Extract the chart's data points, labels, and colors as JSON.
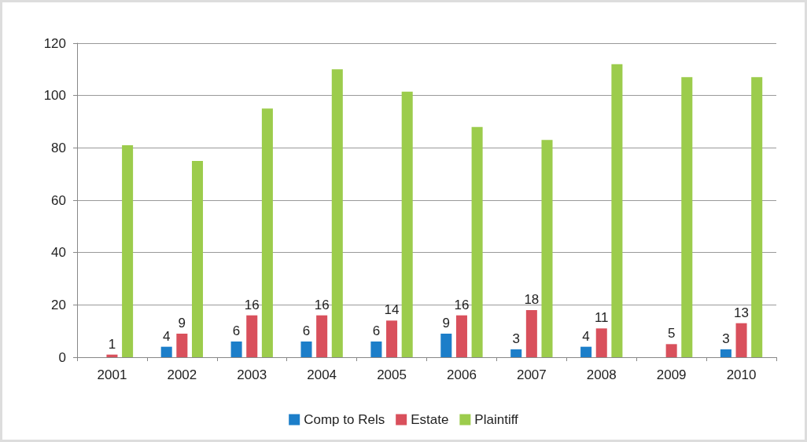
{
  "chart_data": {
    "type": "bar",
    "categories": [
      "2001",
      "2002",
      "2003",
      "2004",
      "2005",
      "2006",
      "2007",
      "2008",
      "2009",
      "2010"
    ],
    "series": [
      {
        "name": "Comp to Rels",
        "color": "#1c7ec9",
        "values": [
          null,
          4,
          6,
          6,
          6,
          9,
          3,
          4,
          null,
          3
        ],
        "value_labels": [
          null,
          "4",
          "6",
          "6",
          "6",
          "9",
          "3",
          "4",
          null,
          "3"
        ]
      },
      {
        "name": "Estate",
        "color": "#d9505c",
        "values": [
          1,
          9,
          16,
          16,
          14,
          16,
          18,
          11,
          5,
          13
        ],
        "value_labels": [
          "1",
          "9",
          "16",
          "16",
          "14",
          "16",
          "18",
          "11",
          "5",
          "13"
        ]
      },
      {
        "name": "Plaintiff",
        "color": "#9ccc4c",
        "values": [
          81,
          75,
          95,
          110,
          101.5,
          88,
          83,
          112,
          107,
          107
        ]
      }
    ],
    "ylim": [
      0,
      120
    ],
    "yticks": [
      0,
      20,
      40,
      60,
      80,
      100,
      120
    ],
    "grid": "y",
    "legend": "bottom"
  }
}
